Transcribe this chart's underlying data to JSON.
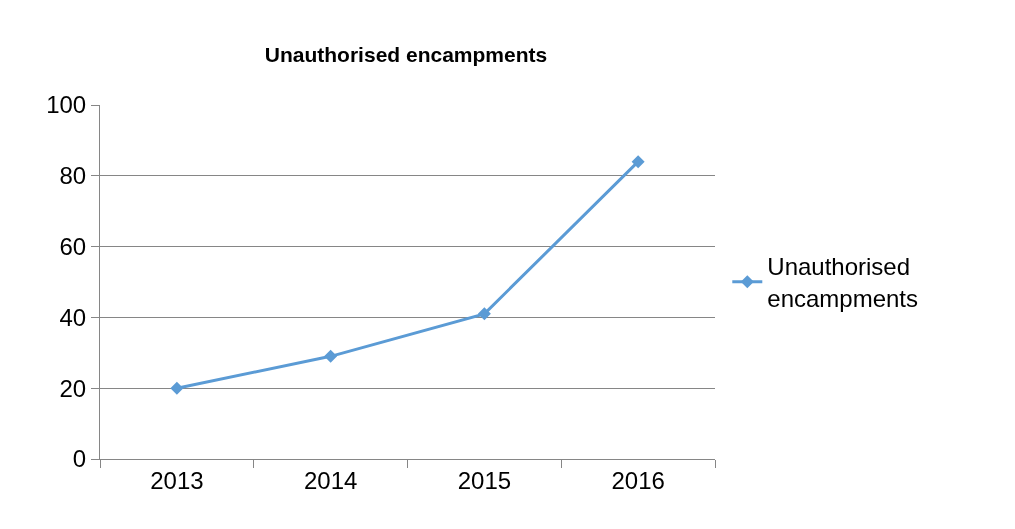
{
  "chart_data": {
    "type": "line",
    "title": "Unauthorised encampments",
    "categories": [
      "2013",
      "2014",
      "2015",
      "2016"
    ],
    "series": [
      {
        "name": "Unauthorised encampments",
        "color": "#5b9bd5",
        "values": [
          20,
          29,
          41,
          84
        ]
      }
    ],
    "ylim": [
      0,
      100
    ],
    "yticks": [
      0,
      20,
      40,
      60,
      80,
      100
    ],
    "grid": "y",
    "legend": "right",
    "marker": "diamond",
    "line_style": "solid"
  }
}
